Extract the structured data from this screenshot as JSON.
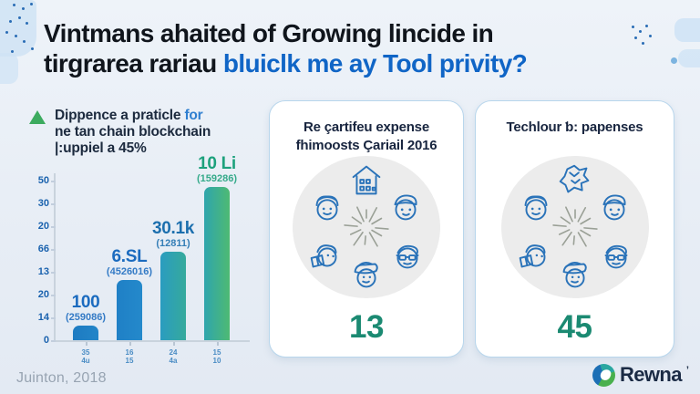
{
  "header": {
    "title_line1": "Vintmans ahaited of Growing lincide in",
    "title_line2_black": "tirgrarea rariau",
    "title_line2_blue": "bluiclk me ay Tool privity?",
    "accent_color": "#1065c6"
  },
  "note": {
    "line1_pre": "Dippence a praticle",
    "line1_blue": "for",
    "line2": "ne tan chain blockchain",
    "line3": "|:uppiel a 45%"
  },
  "chart_data": {
    "type": "bar",
    "title": "Dippence a praticle for ne tan chain blockchain |:uppiel a 45%",
    "y_tick_labels": [
      "50",
      "30",
      "20",
      "66",
      "13",
      "20",
      "14",
      "0"
    ],
    "categories": [
      [
        "35",
        "4u"
      ],
      [
        "16",
        "15"
      ],
      [
        "24",
        "4a"
      ],
      [
        "15",
        "10"
      ]
    ],
    "bars": [
      {
        "label": "100",
        "sublabel": "(259086)",
        "rel_height": 0.09,
        "label_color": "#1b6bbf",
        "color_start": "#1d7bc2",
        "color_end": "#2385c8"
      },
      {
        "label": "6.SL",
        "sublabel": "(4526016)",
        "rel_height": 0.36,
        "label_color": "#1b6bbf",
        "color_start": "#1f80c6",
        "color_end": "#2489cb"
      },
      {
        "label": "30.1k",
        "sublabel": "(12811)",
        "rel_height": 0.53,
        "label_color": "#1c6fae",
        "color_start": "#2a9cc0",
        "color_end": "#36aa9c"
      },
      {
        "label": "10 Li",
        "sublabel": "(159286)",
        "rel_height": 0.92,
        "label_color": "#1da17c",
        "color_start": "#2fa5ad",
        "color_end": "#4eba73"
      }
    ],
    "axis_color": "#c9d3dd",
    "tick_label_color": "#4a8cc4",
    "grid": false,
    "legend": false
  },
  "cards": [
    {
      "title_line1": "Re çartifeu expense",
      "title_line2": "fhimoosts Çariail 2016",
      "value": "13",
      "value_color": "#1b8a72",
      "icons": [
        "house-icon",
        "face-beret-icon",
        "face-cap-icon",
        "face-tools-icon",
        "face-glasses-icon",
        "face-fish-icon"
      ]
    },
    {
      "title_line1": "Techlour ƅ: papenses",
      "title_line2": "",
      "value": "45",
      "value_color": "#1b8a72",
      "icons": [
        "crumpled-paper-icon",
        "face-curl-icon",
        "face-band-icon",
        "face-book-icon",
        "face-headphones-icon",
        "face-hat-icon"
      ]
    }
  ],
  "footer": {
    "source": "Juinton, 2018",
    "brand": "Rewna",
    "brand_mark": "’"
  }
}
